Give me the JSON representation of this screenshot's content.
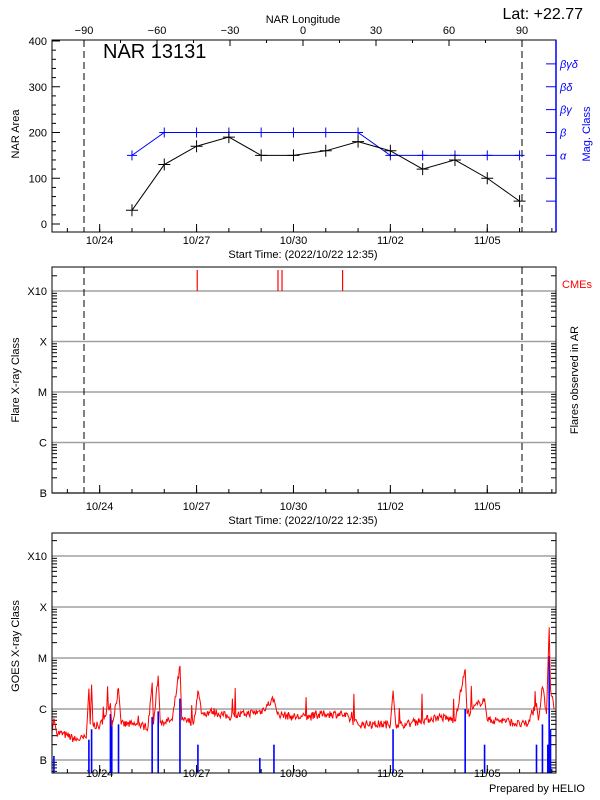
{
  "header": {
    "longitude_axis_label": "NAR Longitude",
    "latitude": "Lat: +22.77",
    "region_label": "NAR 13131",
    "prepared_by": "Prepared by HELIO"
  },
  "colors": {
    "area": "#000000",
    "mag_class": "#0000ff",
    "goes_flux": "#ff0000",
    "flares": "#0000ff",
    "cmes": "#ff0000",
    "grid": "#a0a0a0"
  },
  "chart_data": [
    {
      "type": "line",
      "title": "NAR 13131",
      "xlabel": "Start Time: (2022/10/22 12:35)",
      "ylabel": "NAR Area",
      "y2label": "Mag. Class",
      "x_top_label": "NAR Longitude",
      "x_range": [
        "2022-10-22T12:35",
        "2022-11-07T02:00"
      ],
      "x_tick_labels": [
        "10/24",
        "10/27",
        "10/30",
        "11/02",
        "11/05"
      ],
      "x_tick_dates": [
        "2022-10-24T00:00",
        "2022-10-27T00:00",
        "2022-10-30T00:00",
        "2022-11-02T00:00",
        "2022-11-05T00:00"
      ],
      "x_top_ticks": [
        -90,
        -60,
        -30,
        0,
        30,
        60,
        90
      ],
      "limb_longitudes": [
        -90,
        90
      ],
      "ylim": [
        0,
        400
      ],
      "y_ticks": [
        0,
        100,
        200,
        300,
        400
      ],
      "mag_class_levels": [
        {
          "label": "α",
          "y_equiv": 150
        },
        {
          "label": "β",
          "y_equiv": 200
        },
        {
          "label": "βγ",
          "y_equiv": 250
        },
        {
          "label": "βδ",
          "y_equiv": 300
        },
        {
          "label": "βγδ",
          "y_equiv": 350
        }
      ],
      "series": [
        {
          "key": "area",
          "dates": [
            "2022-10-25",
            "2022-10-26",
            "2022-10-27",
            "2022-10-28",
            "2022-10-29",
            "2022-10-30",
            "2022-10-31",
            "2022-11-01",
            "2022-11-02",
            "2022-11-03",
            "2022-11-04",
            "2022-11-05",
            "2022-11-06"
          ],
          "values": [
            30,
            130,
            170,
            190,
            150,
            150,
            160,
            180,
            160,
            120,
            140,
            100,
            50
          ]
        },
        {
          "key": "mag_class",
          "dates": [
            "2022-10-25",
            "2022-10-26",
            "2022-10-27",
            "2022-10-28",
            "2022-10-29",
            "2022-10-30",
            "2022-10-31",
            "2022-11-01",
            "2022-11-02",
            "2022-11-03",
            "2022-11-04",
            "2022-11-05",
            "2022-11-06"
          ],
          "values": [
            "α",
            "β",
            "β",
            "β",
            "β",
            "β",
            "β",
            "β",
            "α",
            "α",
            "α",
            "α",
            "α"
          ]
        }
      ]
    },
    {
      "type": "scatter",
      "xlabel": "Start Time: (2022/10/22 12:35)",
      "ylabel": "Flare X-ray Class",
      "y2label": "Flares observed in AR",
      "y_levels": [
        "B",
        "C",
        "M",
        "X",
        "X10"
      ],
      "cme_label": "CMEs",
      "cmes": [
        "2022-10-27T00:30",
        "2022-10-29T12:30",
        "2022-10-29T15:30",
        "2022-10-31T12:30"
      ],
      "flares": []
    },
    {
      "type": "line",
      "ylabel": "GOES X-ray Class",
      "y_levels": [
        "B",
        "C",
        "M",
        "X",
        "X10"
      ],
      "y_scale": "log",
      "ylim_flux": [
        1e-07,
        0.001
      ],
      "goes_flux": [
        [
          "2022-10-22T12:35",
          3.5e-07
        ],
        [
          "2022-10-22T14:00",
          6.5e-07
        ],
        [
          "2022-10-22T16:00",
          3.5e-07
        ],
        [
          "2022-10-23T00:00",
          3e-07
        ],
        [
          "2022-10-23T06:00",
          2.5e-07
        ],
        [
          "2022-10-23T14:00",
          2.7e-07
        ],
        [
          "2022-10-23T16:00",
          2.5e-06
        ],
        [
          "2022-10-23T17:00",
          5e-07
        ],
        [
          "2022-10-23T18:00",
          3e-06
        ],
        [
          "2022-10-23T19:00",
          5e-07
        ],
        [
          "2022-10-24T00:00",
          4.5e-07
        ],
        [
          "2022-10-24T08:00",
          1.3e-06
        ],
        [
          "2022-10-24T09:00",
          4.5e-07
        ],
        [
          "2022-10-24T14:00",
          2.5e-06
        ],
        [
          "2022-10-24T16:00",
          5e-07
        ],
        [
          "2022-10-25T00:00",
          5e-07
        ],
        [
          "2022-10-25T12:00",
          4.5e-07
        ],
        [
          "2022-10-25T15:00",
          3.3e-06
        ],
        [
          "2022-10-25T16:00",
          5e-07
        ],
        [
          "2022-10-25T19:30",
          4.5e-06
        ],
        [
          "2022-10-25T21:00",
          5.5e-07
        ],
        [
          "2022-10-26T06:00",
          6e-07
        ],
        [
          "2022-10-26T11:40",
          7e-06
        ],
        [
          "2022-10-26T13:00",
          6e-07
        ],
        [
          "2022-10-26T22:00",
          5.5e-07
        ],
        [
          "2022-10-27T01:00",
          2.3e-06
        ],
        [
          "2022-10-27T04:00",
          8e-07
        ],
        [
          "2022-10-27T12:00",
          9e-07
        ],
        [
          "2022-10-28T00:00",
          7e-07
        ],
        [
          "2022-10-28T12:00",
          8e-07
        ],
        [
          "2022-10-29T00:00",
          9e-07
        ],
        [
          "2022-10-29T09:30",
          1.6e-06
        ],
        [
          "2022-10-29T12:00",
          8e-07
        ],
        [
          "2022-10-30T00:00",
          7e-07
        ],
        [
          "2022-10-30T12:00",
          7e-07
        ],
        [
          "2022-10-31T00:00",
          8e-07
        ],
        [
          "2022-10-31T12:00",
          8e-07
        ],
        [
          "2022-11-01T00:00",
          5e-07
        ],
        [
          "2022-11-01T12:00",
          5e-07
        ],
        [
          "2022-11-02T00:00",
          5e-07
        ],
        [
          "2022-11-02T02:00",
          2.3e-06
        ],
        [
          "2022-11-02T04:00",
          5e-07
        ],
        [
          "2022-11-02T12:00",
          5e-07
        ],
        [
          "2022-11-03T00:00",
          6e-07
        ],
        [
          "2022-11-03T12:00",
          7e-07
        ],
        [
          "2022-11-04T00:00",
          6e-07
        ],
        [
          "2022-11-04T07:35",
          6e-06
        ],
        [
          "2022-11-04T09:00",
          8e-07
        ],
        [
          "2022-11-04T22:00",
          1.6e-06
        ],
        [
          "2022-11-05T00:00",
          6e-07
        ],
        [
          "2022-11-05T12:00",
          6e-07
        ],
        [
          "2022-11-06T00:00",
          5e-07
        ],
        [
          "2022-11-06T06:00",
          5e-07
        ],
        [
          "2022-11-06T12:35",
          1.3e-06
        ],
        [
          "2022-11-06T14:00",
          6e-07
        ],
        [
          "2022-11-06T17:00",
          2.7e-06
        ],
        [
          "2022-11-06T20:00",
          8e-07
        ],
        [
          "2022-11-06T22:00",
          4e-05
        ],
        [
          "2022-11-06T23:00",
          2.5e-06
        ],
        [
          "2022-11-07T02:00",
          1e-06
        ]
      ],
      "flares": [
        [
          "2022-10-22T14:00",
          1.2e-07
        ],
        [
          "2022-10-23T16:00",
          2.5e-07
        ],
        [
          "2022-10-23T18:00",
          4e-07
        ],
        [
          "2022-10-24T08:00",
          8e-07
        ],
        [
          "2022-10-24T09:00",
          6e-07
        ],
        [
          "2022-10-24T14:00",
          5e-07
        ],
        [
          "2022-10-25T15:00",
          7e-07
        ],
        [
          "2022-10-25T19:30",
          9e-07
        ],
        [
          "2022-10-26T11:40",
          1.6e-06
        ],
        [
          "2022-10-27T01:00",
          2e-07
        ],
        [
          "2022-10-28T23:00",
          1.1e-07
        ],
        [
          "2022-10-29T09:30",
          2e-07
        ],
        [
          "2022-11-02T02:00",
          4e-07
        ],
        [
          "2022-11-04T07:35",
          1e-06
        ],
        [
          "2022-11-04T22:00",
          2e-07
        ],
        [
          "2022-11-06T12:35",
          2e-07
        ],
        [
          "2022-11-06T17:00",
          5e-07
        ],
        [
          "2022-11-06T21:00",
          2e-07
        ],
        [
          "2022-11-06T22:00",
          1.1e-05
        ],
        [
          "2022-11-06T23:00",
          4e-07
        ]
      ]
    }
  ]
}
